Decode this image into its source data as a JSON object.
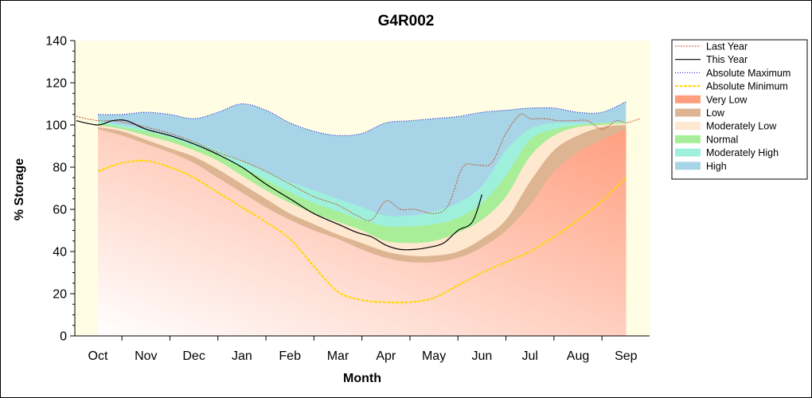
{
  "chart_data": {
    "type": "area",
    "title": "G4R002",
    "xlabel": "Month",
    "ylabel": "% Storage",
    "ylim": [
      0,
      140
    ],
    "yticks": [
      0,
      20,
      40,
      60,
      80,
      100,
      120,
      140
    ],
    "categories": [
      "Oct",
      "Nov",
      "Dec",
      "Jan",
      "Feb",
      "Mar",
      "Apr",
      "May",
      "Jun",
      "Jul",
      "Aug",
      "Sep"
    ],
    "legend_position": "right",
    "grid": false,
    "colors": {
      "plot_background": "#FFFDE4",
      "very_low": "#FF9F80",
      "low": "#DDB593",
      "moderately_low": "#FFE8D0",
      "normal": "#A8EE98",
      "moderately_high": "#9EF0DC",
      "high": "#A8D4E8",
      "last_year": "#C05020",
      "this_year": "#000000",
      "absolute_maximum": "#0000CC",
      "absolute_minimum": "#FFD800"
    },
    "legend": [
      {
        "label": "Last Year",
        "key": "last_year"
      },
      {
        "label": "This Year",
        "key": "this_year"
      },
      {
        "label": "Absolute Maximum",
        "key": "absolute_maximum"
      },
      {
        "label": "Absolute Minimum",
        "key": "absolute_minimum"
      },
      {
        "label": "Very Low",
        "key": "very_low"
      },
      {
        "label": "Low",
        "key": "low"
      },
      {
        "label": "Moderately Low",
        "key": "moderately_low"
      },
      {
        "label": "Normal",
        "key": "normal"
      },
      {
        "label": "Moderately High",
        "key": "moderately_high"
      },
      {
        "label": "High",
        "key": "high"
      }
    ],
    "bands_x": [
      0,
      0.5,
      1,
      1.5,
      2,
      2.5,
      3,
      3.5,
      4,
      4.5,
      5,
      5.5,
      6,
      6.5,
      7,
      7.5,
      8,
      8.5,
      9,
      9.5,
      10,
      10.5,
      11
    ],
    "bands": {
      "very_low_top": [
        98,
        95,
        91,
        87,
        82,
        75,
        68,
        61,
        55,
        50,
        46,
        41,
        37,
        35,
        35,
        37,
        42,
        50,
        62,
        78,
        87,
        93,
        98
      ],
      "low_top": [
        99,
        97,
        93,
        89,
        85,
        79,
        72,
        65,
        58,
        53,
        48,
        44,
        40,
        38,
        38,
        40,
        46,
        55,
        73,
        88,
        95,
        99,
        100
      ],
      "moderately_low_top": [
        100,
        98,
        95,
        92,
        88,
        83,
        76,
        69,
        63,
        58,
        54,
        50,
        45,
        44,
        45,
        49,
        55,
        66,
        85,
        95,
        99,
        100,
        101
      ],
      "normal_top": [
        101,
        99,
        97,
        94,
        90,
        86,
        80,
        74,
        68,
        63,
        59,
        55,
        52,
        52,
        53,
        56,
        63,
        76,
        93,
        98,
        100,
        101,
        101
      ],
      "moderately_high_top": [
        102,
        100,
        98,
        95,
        92,
        88,
        83,
        78,
        73,
        69,
        65,
        61,
        57,
        57,
        59,
        63,
        71,
        88,
        98,
        101,
        101,
        101,
        102
      ],
      "high_top": [
        105,
        105,
        106,
        105,
        103,
        106,
        110,
        107,
        101,
        97,
        95,
        96,
        101,
        102,
        103,
        104,
        106,
        107,
        108,
        108,
        106,
        106,
        111
      ]
    },
    "series": [
      {
        "name": "Absolute Maximum",
        "x": [
          0,
          0.5,
          1,
          1.5,
          2,
          2.5,
          3,
          3.5,
          4,
          4.5,
          5,
          5.5,
          6,
          6.5,
          7,
          7.5,
          8,
          8.5,
          9,
          9.5,
          10,
          10.5,
          11
        ],
        "values": [
          105,
          105,
          106,
          105,
          103,
          106,
          110,
          107,
          101,
          97,
          95,
          96,
          101,
          102,
          103,
          104,
          106,
          107,
          108,
          108,
          106,
          106,
          111
        ]
      },
      {
        "name": "Absolute Minimum",
        "x": [
          0,
          0.5,
          1,
          1.5,
          2,
          2.5,
          3,
          3.5,
          4,
          4.5,
          5,
          5.5,
          6,
          6.5,
          7,
          7.5,
          8,
          8.5,
          9,
          9.5,
          10,
          10.5,
          11
        ],
        "values": [
          78,
          82,
          83,
          80,
          75,
          68,
          61,
          54,
          46,
          33,
          21,
          17,
          16,
          16,
          18,
          24,
          30,
          35,
          40,
          47,
          55,
          64,
          75
        ]
      },
      {
        "name": "Last Year",
        "x": [
          -0.45,
          0,
          0.3,
          0.6,
          1,
          1.5,
          2,
          2.5,
          3,
          3.5,
          4,
          4.5,
          5,
          5.4,
          5.7,
          6,
          6.3,
          6.6,
          7,
          7.3,
          7.6,
          7.9,
          8.2,
          8.5,
          8.8,
          9,
          9.3,
          9.6,
          9.9,
          10.2,
          10.5,
          10.8,
          11,
          11.3
        ],
        "values": [
          104,
          102,
          102,
          101,
          99,
          96,
          92,
          87,
          83,
          78,
          72,
          66,
          62,
          57,
          55,
          64,
          60,
          60,
          58,
          62,
          80,
          81,
          82,
          96,
          105,
          103,
          103,
          102,
          102,
          102,
          98,
          102,
          101,
          103
        ]
      },
      {
        "name": "This Year",
        "x": [
          -0.45,
          0,
          0.3,
          0.6,
          1,
          1.5,
          2,
          2.5,
          3,
          3.5,
          4,
          4.5,
          5,
          5.4,
          5.7,
          6,
          6.3,
          6.6,
          6.9,
          7.2,
          7.5,
          7.8,
          8.0
        ],
        "values": [
          102,
          100,
          102,
          102,
          98,
          95,
          91,
          86,
          80,
          72,
          65,
          58,
          53,
          49,
          47,
          43,
          41,
          41,
          42,
          44,
          50,
          54,
          67
        ]
      }
    ]
  }
}
